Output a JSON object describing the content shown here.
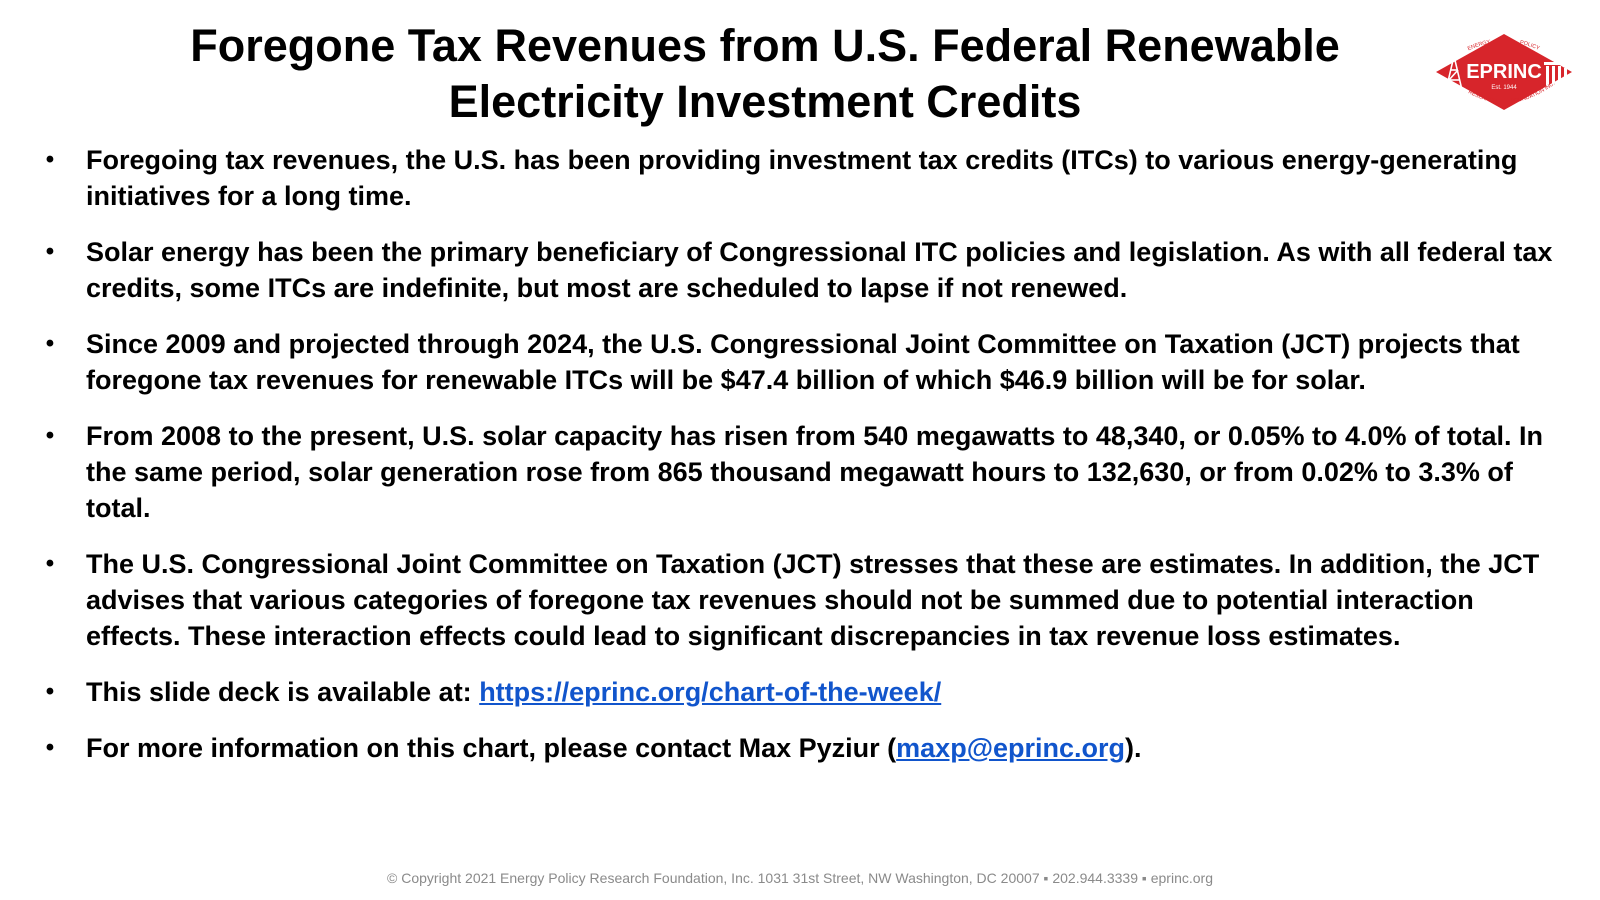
{
  "slide": {
    "title_line1": "Foregone Tax Revenues from U.S. Federal Renewable",
    "title_line2": "Electricity Investment Credits",
    "logo": {
      "main_text": "EPRINC",
      "est_text": "Est. 1944",
      "arc_top_left": "ENERGY",
      "arc_top_right": "POLICY",
      "arc_bottom_left": "RESEARCH",
      "arc_bottom_right": "FOUNDATION INC.",
      "color": "#d7252b"
    },
    "bullet_glyph": "•",
    "bullets": [
      {
        "text": "Foregoing tax revenues, the U.S. has been providing investment tax credits (ITCs) to various energy-generating initiatives for a long time."
      },
      {
        "text": "Solar energy has been the primary beneficiary of Congressional ITC policies and legislation. As with all federal tax credits, some ITCs are indefinite, but most are scheduled to lapse if not renewed."
      },
      {
        "text": "Since 2009 and projected through 2024, the U.S. Congressional Joint Committee on Taxation (JCT) projects that foregone tax revenues for renewable ITCs will be $47.4 billion of which $46.9 billion will be for solar."
      },
      {
        "text": "From 2008 to the present, U.S. solar capacity has risen from 540 megawatts to 48,340, or 0.05% to 4.0% of total. In the same period, solar generation rose from 865 thousand megawatt hours to 132,630, or from 0.02% to 3.3% of total."
      },
      {
        "text": "The U.S. Congressional Joint Committee on Taxation (JCT) stresses that these are estimates. In addition, the JCT advises that various categories of foregone tax revenues should not be summed due to potential interaction effects. These interaction effects could lead to significant discrepancies in tax revenue loss estimates."
      }
    ],
    "deck_bullet": {
      "prefix": "This slide deck is available at: ",
      "link_text": "https://eprinc.org/chart-of-the-week/"
    },
    "contact_bullet": {
      "prefix": "For more information on this chart, please contact Max Pyziur (",
      "link_text": "maxp@eprinc.org",
      "suffix": ")."
    },
    "footer": "© Copyright 2021 Energy Policy Research Foundation, Inc. 1031 31st Street, NW Washington, DC 20007 ▪ 202.944.3339 ▪ eprinc.org",
    "link_color": "#1155cc"
  }
}
